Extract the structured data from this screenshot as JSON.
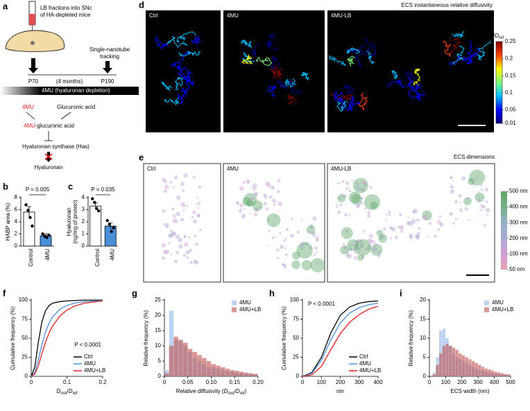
{
  "panel_labels": [
    "a",
    "b",
    "c",
    "d",
    "e",
    "f",
    "g",
    "h",
    "i"
  ],
  "schematic": {
    "injection": [
      "LB fractions into SNc",
      "of HA-depleted mice"
    ],
    "tracking": [
      "Single-nanotube",
      "tracking"
    ],
    "timeline": {
      "start": "P70",
      "span": "(4 months)",
      "end": "P190"
    },
    "treatment": "4MU (hyaluronan depletion)",
    "pathway": {
      "drug": "4MU",
      "partner": "Glucuronic acid",
      "product_drug": "4MU",
      "product_rest": "-glucuronic acid",
      "enzyme": "Hyaluronan synthase (Has)",
      "result": "Hyaluronan"
    }
  },
  "images": {
    "diffusivity": {
      "title": "ECS instantaneous relative diffusivity",
      "panels": [
        "Ctrl",
        "4MU",
        "4MU-LB"
      ],
      "colorbar": {
        "title": [
          {
            "text": "D"
          },
          {
            "text": "inst",
            "baseline": "sub"
          },
          {
            "text": "/"
          },
          {
            "text": "D"
          },
          {
            "text": "ref",
            "baseline": "sub"
          }
        ],
        "lim": [
          0.01,
          0.25
        ],
        "ticks": [
          0.25,
          0.2,
          0.15,
          0.1,
          0.05,
          0.01
        ],
        "colors": [
          "#00007f",
          "#0000ff",
          "#00bfff",
          "#7fff7f",
          "#ffff00",
          "#ff3f00",
          "#7f0000"
        ]
      }
    },
    "dimensions": {
      "title": "ECS dimensions",
      "panels": [
        "Ctrl",
        "4MU",
        "4MU-LB"
      ],
      "colorbar": {
        "ticks": [
          {
            "value": 500,
            "label": "500 nm"
          },
          {
            "value": 400,
            "label": "400 nm"
          },
          {
            "value": 300,
            "label": "300 nm"
          },
          {
            "value": 200,
            "label": "200 nm"
          },
          {
            "value": 100,
            "label": "100 nm"
          },
          {
            "value": 50,
            "label": "50 nm"
          }
        ],
        "colors": [
          "#e9a3ad",
          "#cf9fd6",
          "#a9a9d2",
          "#94b3c4",
          "#78ad8a",
          "#5fa86a"
        ]
      }
    }
  },
  "chart_data": [
    {
      "type": "bar",
      "categories": [
        "Control",
        "4MU"
      ],
      "values": [
        5.6,
        1.7
      ],
      "errors": [
        0.9,
        0.3
      ],
      "points": [
        [
          6.8,
          5.9,
          4.7,
          3.3
        ],
        [
          2.0,
          1.6,
          1.4,
          1.8
        ]
      ],
      "colors": [
        "#ffffff",
        "#4a90d9"
      ],
      "ylabel": [
        "HABP area (%)"
      ],
      "ylim": [
        0,
        8
      ],
      "yticks": [
        0,
        2,
        4,
        6,
        8
      ],
      "annotation": "P = 0.005"
    },
    {
      "type": "bar",
      "categories": [
        "Control",
        "4MU"
      ],
      "values": [
        3.3,
        1.65
      ],
      "errors": [
        0.25,
        0.25
      ],
      "points": [
        [
          3.9,
          3.6,
          3.1,
          2.9
        ],
        [
          2.1,
          1.8,
          1.2,
          1.5
        ]
      ],
      "colors": [
        "#ffffff",
        "#4a90d9"
      ],
      "ylabel": [
        "Hyaluronan",
        "(ng/mg of protein)"
      ],
      "ylim": [
        0,
        4
      ],
      "yticks": [
        0,
        1,
        2,
        3,
        4
      ],
      "annotation": "P = 0.035"
    },
    {
      "type": "line",
      "x": [
        0,
        0.01,
        0.02,
        0.03,
        0.04,
        0.05,
        0.06,
        0.08,
        0.1,
        0.12,
        0.15,
        0.2
      ],
      "series": [
        {
          "name": "Ctrl",
          "color": "#000000",
          "values": [
            0,
            12,
            45,
            72,
            86,
            93,
            96,
            98,
            99,
            99.5,
            100,
            100
          ]
        },
        {
          "name": "4MU",
          "color": "#4a90d9",
          "values": [
            0,
            5,
            22,
            42,
            58,
            70,
            78,
            88,
            93,
            96,
            98,
            99.5
          ]
        },
        {
          "name": "4MU+LB",
          "color": "#e02020",
          "values": [
            0,
            3,
            14,
            30,
            45,
            57,
            66,
            79,
            87,
            92,
            96,
            99
          ]
        }
      ],
      "ylabel": [
        "Cumulative frequency (%)"
      ],
      "xlabel": [
        {
          "text": "D"
        },
        {
          "text": "inst",
          "baseline": "sub"
        },
        {
          "text": "/"
        },
        {
          "text": "D"
        },
        {
          "text": "ref",
          "baseline": "sub"
        }
      ],
      "xlim": [
        0,
        0.2
      ],
      "xticks": [
        0,
        0.1,
        0.2
      ],
      "ylim": [
        0,
        100
      ],
      "yticks": [
        0,
        25,
        50,
        75,
        100
      ],
      "annotation": "P < 0.0001",
      "annotation_corner": "center right",
      "legend": "lower right"
    },
    {
      "type": "histogram",
      "bins": [
        0,
        0.01,
        0.02,
        0.03,
        0.04,
        0.05,
        0.06,
        0.07,
        0.08,
        0.09,
        0.1,
        0.11,
        0.12,
        0.13,
        0.14,
        0.15,
        0.16,
        0.17,
        0.18,
        0.19,
        0.2
      ],
      "series": [
        {
          "name": "4MU",
          "color": "#8fb8e8",
          "values": [
            2,
            21.5,
            12,
            11.5,
            10,
            8,
            6,
            5,
            4,
            3,
            3,
            2.5,
            2,
            1.7,
            1.5,
            1.2,
            1,
            0.8,
            0.7,
            0.6
          ]
        },
        {
          "name": "4MU+LB",
          "color": "#c0504d",
          "values": [
            1,
            10,
            13,
            12,
            11,
            9,
            8,
            7,
            6,
            5,
            4,
            3.5,
            3,
            2.5,
            2,
            1.8,
            1.5,
            1.2,
            1,
            0.8
          ]
        }
      ],
      "ylabel": [
        "Relative frequency (%)"
      ],
      "xlabel": [
        {
          "text": "Relative diffusivity ("
        },
        {
          "text": "D"
        },
        {
          "text": "inst",
          "baseline": "sub"
        },
        {
          "text": "/"
        },
        {
          "text": "D"
        },
        {
          "text": "ref",
          "baseline": "sub"
        },
        {
          "text": ")"
        }
      ],
      "xlim": [
        0,
        0.2
      ],
      "xticks": [
        0,
        {
          "value": 0.05,
          "label": "0.05"
        },
        {
          "value": 0.1,
          "label": "0.10"
        },
        {
          "value": 0.15,
          "label": "0.15"
        },
        {
          "value": 0.2,
          "label": "0.20"
        }
      ],
      "ylim": [
        0,
        25
      ],
      "yticks": [
        0,
        5,
        10,
        15,
        20,
        25
      ],
      "legend": "upper right"
    },
    {
      "type": "line",
      "x": [
        0,
        50,
        100,
        150,
        200,
        250,
        300,
        350,
        400
      ],
      "series": [
        {
          "name": "Ctrl",
          "color": "#000000",
          "values": [
            0,
            5,
            25,
            57,
            80,
            91,
            96,
            98,
            99
          ]
        },
        {
          "name": "4MU",
          "color": "#4a90d9",
          "values": [
            0,
            4,
            21,
            48,
            70,
            83,
            90,
            94,
            96
          ]
        },
        {
          "name": "4MU+LB",
          "color": "#e02020",
          "values": [
            0,
            2,
            13,
            35,
            56,
            71,
            81,
            88,
            92
          ]
        }
      ],
      "ylabel": [
        "Cumulative frequency (%)"
      ],
      "xlabel": [
        {
          "text": "nm"
        }
      ],
      "xlim": [
        0,
        400
      ],
      "xticks": [
        0,
        100,
        200,
        300,
        400
      ],
      "ylim": [
        0,
        100
      ],
      "yticks": [
        0,
        25,
        50,
        75,
        100
      ],
      "annotation": "P < 0.0001",
      "annotation_corner": "upper left",
      "legend": "lower right"
    },
    {
      "type": "histogram",
      "bins": [
        0,
        20,
        40,
        60,
        80,
        100,
        120,
        140,
        160,
        180,
        200,
        220,
        240,
        260,
        280,
        300,
        320,
        340,
        360,
        380,
        400,
        420,
        440,
        460,
        480,
        500
      ],
      "series": [
        {
          "name": "4MU",
          "color": "#8fb8e8",
          "values": [
            0,
            1,
            5,
            12,
            12.5,
            10,
            8,
            6,
            5,
            4.5,
            4,
            3.5,
            3,
            2.5,
            2,
            1.8,
            1.5,
            1.2,
            1,
            0.9,
            0.7,
            0.6,
            0.5,
            0.4,
            0.3
          ]
        },
        {
          "name": "4MU+LB",
          "color": "#c0504d",
          "values": [
            0,
            0.5,
            3,
            6,
            8,
            8.5,
            8,
            7.5,
            7,
            6,
            5.5,
            5,
            4.5,
            4,
            3.5,
            3,
            2.5,
            2,
            1.8,
            1.5,
            1.2,
            1,
            0.8,
            0.6,
            0.5
          ]
        }
      ],
      "ylabel": [
        "Relative frequency (%)"
      ],
      "xlabel": [
        {
          "text": "ECS width (nm)"
        }
      ],
      "xlim": [
        0,
        500
      ],
      "xticks": [
        0,
        100,
        200,
        300,
        400,
        500
      ],
      "ylim": [
        0,
        20
      ],
      "yticks": [
        0,
        5,
        10,
        15,
        20
      ],
      "legend": "upper right"
    }
  ]
}
